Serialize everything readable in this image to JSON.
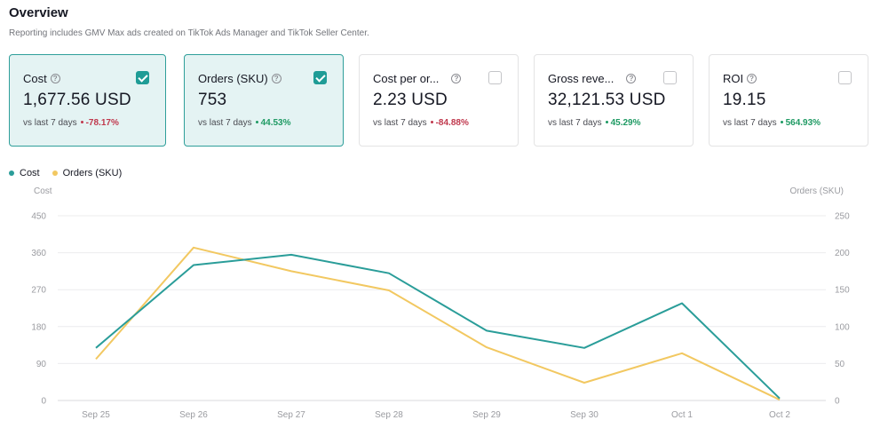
{
  "overview": {
    "title": "Overview",
    "subtitle": "Reporting includes GMV Max ads created on TikTok Ads Manager and TikTok Seller Center."
  },
  "metrics": [
    {
      "label": "Cost",
      "value": "1,677.56 USD",
      "compare_label": "vs last 7 days",
      "change": "-78.17%",
      "direction": "down",
      "checked": true
    },
    {
      "label": "Orders (SKU)",
      "value": "753",
      "compare_label": "vs last 7 days",
      "change": "44.53%",
      "direction": "up",
      "checked": true
    },
    {
      "label": "Cost per or...",
      "value": "2.23 USD",
      "compare_label": "vs last 7 days",
      "change": "-84.88%",
      "direction": "down",
      "checked": false
    },
    {
      "label": "Gross reve...",
      "value": "32,121.53 USD",
      "compare_label": "vs last 7 days",
      "change": "45.29%",
      "direction": "up",
      "checked": false
    },
    {
      "label": "ROI",
      "value": "19.15",
      "compare_label": "vs last 7 days",
      "change": "564.93%",
      "direction": "up",
      "checked": false
    }
  ],
  "colors": {
    "cost": "#2a9d99",
    "orders": "#f2c861",
    "down": "#c0384d",
    "up": "#1e9a63"
  },
  "chart_data": {
    "type": "line",
    "categories": [
      "Sep 25",
      "Sep 26",
      "Sep 27",
      "Sep 28",
      "Sep 29",
      "Sep 30",
      "Oct 1",
      "Oct 2"
    ],
    "series": [
      {
        "name": "Cost",
        "axis": "left",
        "values": [
          128,
          330,
          355,
          310,
          170,
          128,
          237,
          5
        ]
      },
      {
        "name": "Orders (SKU)",
        "axis": "right",
        "values": [
          56,
          207,
          175,
          149,
          72,
          24,
          64,
          1
        ]
      }
    ],
    "y_left": {
      "label": "Cost",
      "ticks": [
        "0",
        "90",
        "180",
        "270",
        "360",
        "450"
      ],
      "range": [
        0,
        450
      ]
    },
    "y_right": {
      "label": "Orders (SKU)",
      "ticks": [
        "0",
        "50",
        "100",
        "150",
        "200",
        "250"
      ],
      "range": [
        0,
        250
      ]
    },
    "grid": true,
    "legend_position": "top-left"
  }
}
